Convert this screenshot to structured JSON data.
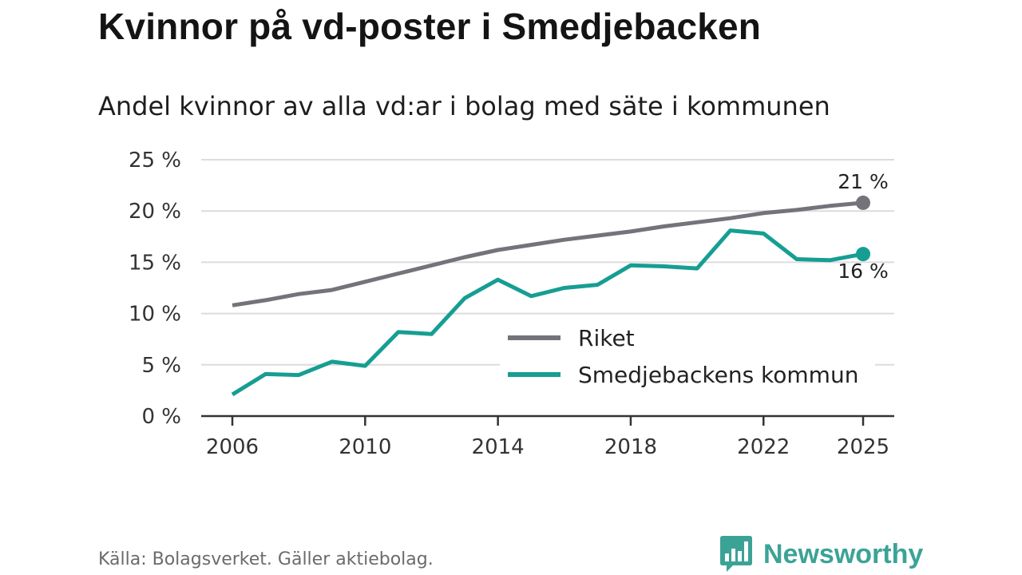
{
  "header": {
    "title": "Kvinnor på vd-poster i Smedjebacken",
    "subtitle": "Andel kvinnor av alla vd:ar i bolag med säte i kommunen"
  },
  "footer": {
    "source": "Källa: Bolagsverket. Gäller aktiebolag.",
    "brand": "Newsworthy",
    "brand_icon": "bar-chart-speech-bubble-icon"
  },
  "colors": {
    "riket": "#75737a",
    "kommun": "#169e93",
    "grid": "#dcdcdc",
    "axis": "#333333",
    "brand": "#3ba396"
  },
  "chart_data": {
    "type": "line",
    "x": [
      2006,
      2007,
      2008,
      2009,
      2010,
      2011,
      2012,
      2013,
      2014,
      2015,
      2016,
      2017,
      2018,
      2019,
      2020,
      2021,
      2022,
      2023,
      2024,
      2025
    ],
    "series": [
      {
        "name": "Riket",
        "values": [
          10.8,
          11.3,
          11.9,
          12.3,
          13.1,
          13.9,
          14.7,
          15.5,
          16.2,
          16.7,
          17.2,
          17.6,
          18.0,
          18.5,
          18.9,
          19.3,
          19.8,
          20.1,
          20.5,
          20.8
        ],
        "end_label": "21 %"
      },
      {
        "name": "Smedjebackens kommun",
        "values": [
          2.1,
          4.1,
          4.0,
          5.3,
          4.9,
          8.2,
          8.0,
          11.5,
          13.3,
          11.7,
          12.5,
          12.8,
          14.7,
          14.6,
          14.4,
          18.1,
          17.8,
          15.3,
          15.2,
          15.8
        ],
        "end_label": "16 %"
      }
    ],
    "ylim": [
      0,
      25
    ],
    "y_ticks": [
      0,
      5,
      10,
      15,
      20,
      25
    ],
    "y_tick_labels": [
      "0 %",
      "5 %",
      "10 %",
      "15 %",
      "20 %",
      "25 %"
    ],
    "x_ticks": [
      2006,
      2010,
      2014,
      2018,
      2022,
      2025
    ],
    "x_tick_labels": [
      "2006",
      "2010",
      "2014",
      "2018",
      "2022",
      "2025"
    ],
    "xlim": [
      2006,
      2025
    ],
    "grid": true,
    "legend_position": "center-right",
    "xlabel": "",
    "ylabel": ""
  }
}
